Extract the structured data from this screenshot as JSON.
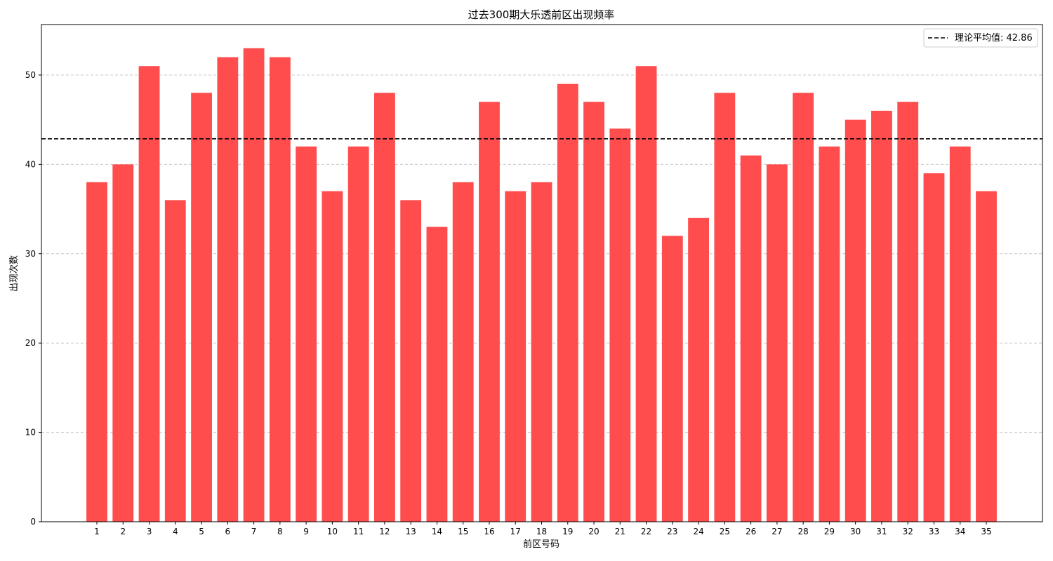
{
  "chart_data": {
    "type": "bar",
    "title": "过去300期大乐透前区出现频率",
    "xlabel": "前区号码",
    "ylabel": "出现次数",
    "categories": [
      "1",
      "2",
      "3",
      "4",
      "5",
      "6",
      "7",
      "8",
      "9",
      "10",
      "11",
      "12",
      "13",
      "14",
      "15",
      "16",
      "17",
      "18",
      "19",
      "20",
      "21",
      "22",
      "23",
      "24",
      "25",
      "26",
      "27",
      "28",
      "29",
      "30",
      "31",
      "32",
      "33",
      "34",
      "35"
    ],
    "values": [
      38,
      40,
      51,
      36,
      48,
      52,
      53,
      52,
      42,
      37,
      42,
      48,
      36,
      33,
      38,
      47,
      37,
      38,
      49,
      47,
      44,
      51,
      32,
      34,
      48,
      41,
      40,
      48,
      42,
      45,
      46,
      47,
      39,
      42,
      37
    ],
    "ylim": [
      0,
      55.65
    ],
    "yticks": [
      0,
      10,
      20,
      30,
      40,
      50
    ],
    "grid": "y-dashed",
    "bar_color": "#ff4c4c",
    "reference_line": {
      "value": 42.86,
      "label": "理论平均值: 42.86",
      "color": "#000000",
      "style": "dashed"
    },
    "legend_position": "top-right"
  }
}
